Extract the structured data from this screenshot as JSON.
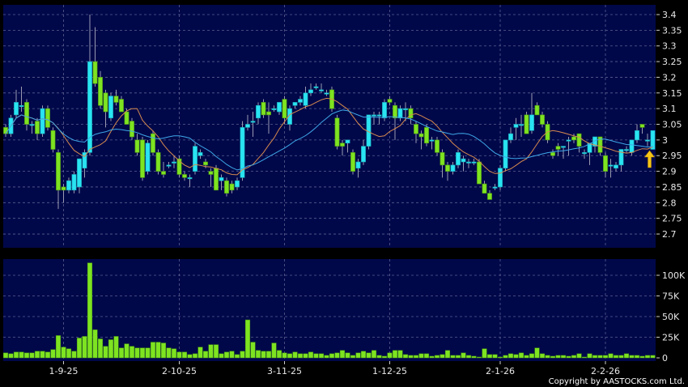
{
  "chart_data": {
    "type": "candlestick",
    "title": "",
    "copyright": "Copyright by AASTOCKS.com Ltd.",
    "colors": {
      "background": "#000000",
      "panel": "#00084a",
      "up": "#29e4f2",
      "down": "#7ee321",
      "ma_short": "#d88a4e",
      "ma_long": "#3fa7e6",
      "volume": "#7ee321",
      "grid": "#5a5f8f",
      "arrow": "#f5c518"
    },
    "price_axis": {
      "ylim": [
        2.65,
        3.42
      ],
      "ticks": [
        "3.4",
        "3.35",
        "3.3",
        "3.25",
        "3.2",
        "3.15",
        "3.1",
        "3.05",
        "3",
        "2.95",
        "2.9",
        "2.85",
        "2.8",
        "2.75",
        "2.7"
      ],
      "position": "right"
    },
    "volume_axis": {
      "ylim": [
        0,
        120
      ],
      "unit": "K",
      "ticks": [
        "100K",
        "75K",
        "50K",
        "25K",
        "0"
      ]
    },
    "x_ticks": [
      {
        "label": "1-9-25",
        "index": 11
      },
      {
        "label": "2-10-25",
        "index": 33
      },
      {
        "label": "3-11-25",
        "index": 53
      },
      {
        "label": "1-12-25",
        "index": 73
      },
      {
        "label": "2-1-26",
        "index": 94
      },
      {
        "label": "2-2-26",
        "index": 114
      }
    ],
    "grid": true,
    "moving_averages": [
      {
        "period": 10,
        "color": "ma_short"
      },
      {
        "period": 20,
        "color": "ma_long"
      }
    ],
    "last_marker": "up-arrow",
    "candles_ohlc": [
      [
        3.04,
        3.05,
        3.01,
        3.02
      ],
      [
        3.02,
        3.08,
        3.01,
        3.07
      ],
      [
        3.08,
        3.16,
        3.07,
        3.12
      ],
      [
        3.11,
        3.17,
        3.09,
        3.11
      ],
      [
        3.12,
        3.13,
        3.03,
        3.05
      ],
      [
        3.05,
        3.06,
        3.02,
        3.05
      ],
      [
        3.06,
        3.07,
        3.0,
        3.02
      ],
      [
        3.02,
        3.11,
        3.01,
        3.1
      ],
      [
        3.1,
        3.11,
        3.03,
        3.04
      ],
      [
        3.03,
        3.04,
        2.96,
        2.97
      ],
      [
        2.96,
        2.97,
        2.78,
        2.84
      ],
      [
        2.85,
        2.86,
        2.8,
        2.84
      ],
      [
        2.84,
        2.88,
        2.83,
        2.87
      ],
      [
        2.84,
        2.9,
        2.83,
        2.89
      ],
      [
        2.85,
        2.94,
        2.83,
        2.94
      ],
      [
        2.91,
        2.97,
        2.88,
        2.96
      ],
      [
        2.96,
        3.4,
        2.95,
        3.25
      ],
      [
        3.25,
        3.36,
        3.17,
        3.18
      ],
      [
        3.2,
        3.22,
        3.1,
        3.11
      ],
      [
        3.15,
        3.16,
        3.04,
        3.09
      ],
      [
        3.07,
        3.15,
        3.06,
        3.14
      ],
      [
        3.14,
        3.16,
        3.11,
        3.12
      ],
      [
        3.13,
        3.14,
        3.09,
        3.09
      ],
      [
        3.09,
        3.1,
        3.05,
        3.05
      ],
      [
        3.06,
        3.07,
        3.0,
        3.01
      ],
      [
        3.0,
        3.02,
        2.95,
        2.96
      ],
      [
        3.0,
        3.01,
        2.87,
        2.88
      ],
      [
        2.9,
        3.0,
        2.89,
        2.99
      ],
      [
        3.02,
        3.03,
        2.95,
        2.96
      ],
      [
        2.96,
        2.97,
        2.89,
        2.9
      ],
      [
        2.9,
        2.93,
        2.88,
        2.89
      ],
      [
        2.92,
        2.93,
        2.91,
        2.92
      ],
      [
        2.93,
        2.95,
        2.91,
        2.93
      ],
      [
        2.94,
        2.95,
        2.88,
        2.89
      ],
      [
        2.89,
        2.9,
        2.87,
        2.88
      ],
      [
        2.88,
        2.89,
        2.85,
        2.88
      ],
      [
        2.9,
        2.99,
        2.89,
        2.98
      ],
      [
        2.95,
        2.97,
        2.94,
        2.96
      ],
      [
        2.93,
        2.94,
        2.91,
        2.92
      ],
      [
        2.9,
        2.91,
        2.85,
        2.89
      ],
      [
        2.91,
        2.92,
        2.84,
        2.84
      ],
      [
        2.87,
        2.89,
        2.84,
        2.88
      ],
      [
        2.87,
        2.88,
        2.82,
        2.83
      ],
      [
        2.86,
        2.87,
        2.83,
        2.84
      ],
      [
        2.85,
        2.88,
        2.84,
        2.87
      ],
      [
        2.88,
        3.06,
        2.87,
        3.04
      ],
      [
        3.04,
        3.08,
        3.03,
        3.05
      ],
      [
        3.06,
        3.09,
        3.01,
        3.06
      ],
      [
        3.07,
        3.12,
        3.05,
        3.11
      ],
      [
        3.12,
        3.13,
        3.07,
        3.08
      ],
      [
        3.09,
        3.12,
        3.02,
        3.08
      ],
      [
        3.1,
        3.11,
        3.09,
        3.1
      ],
      [
        3.09,
        3.12,
        3.08,
        3.12
      ],
      [
        3.13,
        3.14,
        3.05,
        3.07
      ],
      [
        3.05,
        3.11,
        3.03,
        3.1
      ],
      [
        3.11,
        3.12,
        3.1,
        3.12
      ],
      [
        3.12,
        3.14,
        3.11,
        3.13
      ],
      [
        3.11,
        3.17,
        3.1,
        3.15
      ],
      [
        3.15,
        3.18,
        3.14,
        3.16
      ],
      [
        3.17,
        3.18,
        3.16,
        3.17
      ],
      [
        3.16,
        3.18,
        3.15,
        3.16
      ],
      [
        3.15,
        3.16,
        3.14,
        3.15
      ],
      [
        3.16,
        3.17,
        3.09,
        3.1
      ],
      [
        3.07,
        3.08,
        2.97,
        2.98
      ],
      [
        2.99,
        3.0,
        2.95,
        2.98
      ],
      [
        2.99,
        3.0,
        2.96,
        3.0
      ],
      [
        2.96,
        2.97,
        2.89,
        2.9
      ],
      [
        2.91,
        2.94,
        2.88,
        2.93
      ],
      [
        2.93,
        3.0,
        2.92,
        2.98
      ],
      [
        2.98,
        3.08,
        2.97,
        3.08
      ],
      [
        3.08,
        3.09,
        3.05,
        3.08
      ],
      [
        3.08,
        3.09,
        3.05,
        3.08
      ],
      [
        3.07,
        3.13,
        3.06,
        3.12
      ],
      [
        3.13,
        3.14,
        3.11,
        3.12
      ],
      [
        3.11,
        3.12,
        3.0,
        3.07
      ],
      [
        3.07,
        3.11,
        3.06,
        3.1
      ],
      [
        3.1,
        3.12,
        3.06,
        3.1
      ],
      [
        3.1,
        3.11,
        3.05,
        3.07
      ],
      [
        3.05,
        3.06,
        2.99,
        3.02
      ],
      [
        3.02,
        3.03,
        2.97,
        3.01
      ],
      [
        3.04,
        3.05,
        2.98,
        2.99
      ],
      [
        3.0,
        3.01,
        2.97,
        3.0
      ],
      [
        3.0,
        3.01,
        2.95,
        2.96
      ],
      [
        2.96,
        2.97,
        2.88,
        2.92
      ],
      [
        2.92,
        2.93,
        2.87,
        2.9
      ],
      [
        2.9,
        2.93,
        2.89,
        2.92
      ],
      [
        2.92,
        2.97,
        2.91,
        2.96
      ],
      [
        2.93,
        2.95,
        2.9,
        2.94
      ],
      [
        2.93,
        2.94,
        2.91,
        2.93
      ],
      [
        2.93,
        2.94,
        2.92,
        2.93
      ],
      [
        2.93,
        2.94,
        2.86,
        2.86
      ],
      [
        2.86,
        2.87,
        2.83,
        2.83
      ],
      [
        2.83,
        2.84,
        2.81,
        2.81
      ],
      [
        2.85,
        2.86,
        2.84,
        2.85
      ],
      [
        2.85,
        2.92,
        2.84,
        2.91
      ],
      [
        2.91,
        3.0,
        2.9,
        3.0
      ],
      [
        3.0,
        3.04,
        2.99,
        3.02
      ],
      [
        3.04,
        3.07,
        3.0,
        3.05
      ],
      [
        3.05,
        3.08,
        3.01,
        3.05
      ],
      [
        3.08,
        3.09,
        3.02,
        3.02
      ],
      [
        3.03,
        3.15,
        3.02,
        3.08
      ],
      [
        3.11,
        3.12,
        3.08,
        3.08
      ],
      [
        3.08,
        3.09,
        3.04,
        3.05
      ],
      [
        3.05,
        3.06,
        2.99,
        3.0
      ],
      [
        2.96,
        2.97,
        2.94,
        2.95
      ],
      [
        2.98,
        2.99,
        2.95,
        2.97
      ],
      [
        2.98,
        2.98,
        2.94,
        2.98
      ],
      [
        3.0,
        3.01,
        2.95,
        3.0
      ],
      [
        3.01,
        3.02,
        2.99,
        3.0
      ],
      [
        3.02,
        3.02,
        2.96,
        2.98
      ],
      [
        2.96,
        2.97,
        2.94,
        2.96
      ],
      [
        2.96,
        2.99,
        2.92,
        2.99
      ],
      [
        2.98,
        3.01,
        2.96,
        3.01
      ],
      [
        3.01,
        3.01,
        2.95,
        2.96
      ],
      [
        2.95,
        2.96,
        2.88,
        2.9
      ],
      [
        2.92,
        2.94,
        2.88,
        2.92
      ],
      [
        2.91,
        2.93,
        2.9,
        2.92
      ],
      [
        2.92,
        2.97,
        2.9,
        2.97
      ],
      [
        2.97,
        2.98,
        2.96,
        2.97
      ],
      [
        2.96,
        3.0,
        2.95,
        3.0
      ],
      [
        3.0,
        3.05,
        2.99,
        3.03
      ],
      [
        3.05,
        3.05,
        3.02,
        3.04
      ],
      [
        3.0,
        3.02,
        2.98,
        3.0
      ],
      [
        2.97,
        3.03,
        2.97,
        3.03
      ]
    ],
    "volume_k": [
      6,
      5,
      7,
      7,
      6,
      6,
      8,
      8,
      7,
      10,
      27,
      13,
      11,
      8,
      24,
      26,
      115,
      34,
      23,
      14,
      22,
      26,
      12,
      17,
      14,
      12,
      12,
      12,
      19,
      19,
      18,
      12,
      11,
      7,
      7,
      4,
      5,
      13,
      8,
      16,
      16,
      5,
      7,
      8,
      4,
      8,
      46,
      19,
      9,
      8,
      8,
      18,
      9,
      6,
      5,
      7,
      5,
      5,
      7,
      5,
      5,
      3,
      5,
      6,
      9,
      6,
      3,
      6,
      8,
      6,
      9,
      3,
      2,
      6,
      9,
      9,
      4,
      3,
      3,
      5,
      5,
      2,
      3,
      4,
      9,
      3,
      3,
      6,
      3,
      2,
      1,
      11,
      4,
      4,
      1,
      3,
      5,
      4,
      6,
      3,
      5,
      12,
      5,
      3,
      2,
      3,
      3,
      2,
      3,
      5,
      1,
      5,
      3,
      3,
      3,
      5,
      3,
      3,
      5,
      3,
      3,
      2,
      3,
      3
    ]
  }
}
